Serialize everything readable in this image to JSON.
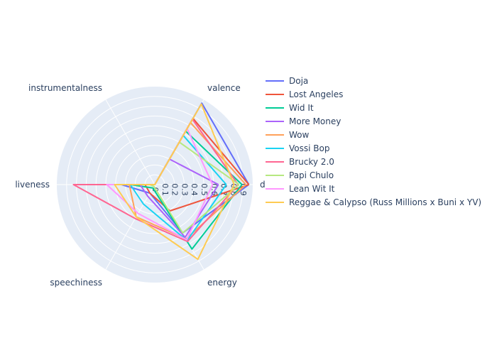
{
  "chart_data": {
    "type": "radar",
    "axes": [
      "danceability",
      "energy",
      "speechiness",
      "liveness",
      "instrumentalness",
      "valence"
    ],
    "axis_label_text": [
      "d",
      "energy",
      "speechiness",
      "liveness",
      "instrumentalness",
      "valence"
    ],
    "radial_range": [
      0,
      1
    ],
    "radial_ticks": [
      "0",
      "0.1",
      "0.2",
      "0.3",
      "0.4",
      "0.5",
      "0.6",
      "0.7",
      "0.8",
      "0.9"
    ],
    "radial_tick_values": [
      0,
      0.1,
      0.2,
      0.3,
      0.4,
      0.5,
      0.6,
      0.7,
      0.8,
      0.9
    ],
    "grid": true,
    "legend_position": "right",
    "series": [
      {
        "name": "Doja",
        "color": "#636efa",
        "values": [
          0.96,
          0.57,
          0.1,
          0.34,
          0.0,
          0.96
        ]
      },
      {
        "name": "Lost Angeles",
        "color": "#EF553B",
        "values": [
          0.96,
          0.31,
          0.1,
          0.1,
          0.0,
          0.78
        ]
      },
      {
        "name": "Wid It",
        "color": "#00cc96",
        "values": [
          0.89,
          0.76,
          0.04,
          0.25,
          0.0,
          0.63
        ]
      },
      {
        "name": "More Money",
        "color": "#ab63fa",
        "values": [
          0.65,
          0.62,
          0.14,
          0.15,
          0.0,
          0.3
        ]
      },
      {
        "name": "Wow",
        "color": "#FFA15A",
        "values": [
          0.93,
          0.64,
          0.38,
          0.26,
          0.0,
          0.73
        ]
      },
      {
        "name": "Vossi Bop",
        "color": "#19d3f3",
        "values": [
          0.73,
          0.66,
          0.23,
          0.25,
          0.0,
          0.58
        ]
      },
      {
        "name": "Brucky 2.0",
        "color": "#FF6692",
        "values": [
          0.85,
          0.67,
          0.4,
          0.83,
          0.0,
          0.77
        ]
      },
      {
        "name": "Papi Chulo",
        "color": "#B6E880",
        "values": [
          0.86,
          0.57,
          0.02,
          0.05,
          0.0,
          0.5
        ]
      },
      {
        "name": "Lean Wit It",
        "color": "#FF97FF",
        "values": [
          0.59,
          0.65,
          0.34,
          0.49,
          0.0,
          0.66
        ]
      },
      {
        "name": "Reggae & Calypso (Russ Millions x Buni x YV)",
        "color": "#FECB52",
        "values": [
          0.81,
          0.88,
          0.38,
          0.41,
          0.0,
          0.95
        ]
      }
    ]
  }
}
